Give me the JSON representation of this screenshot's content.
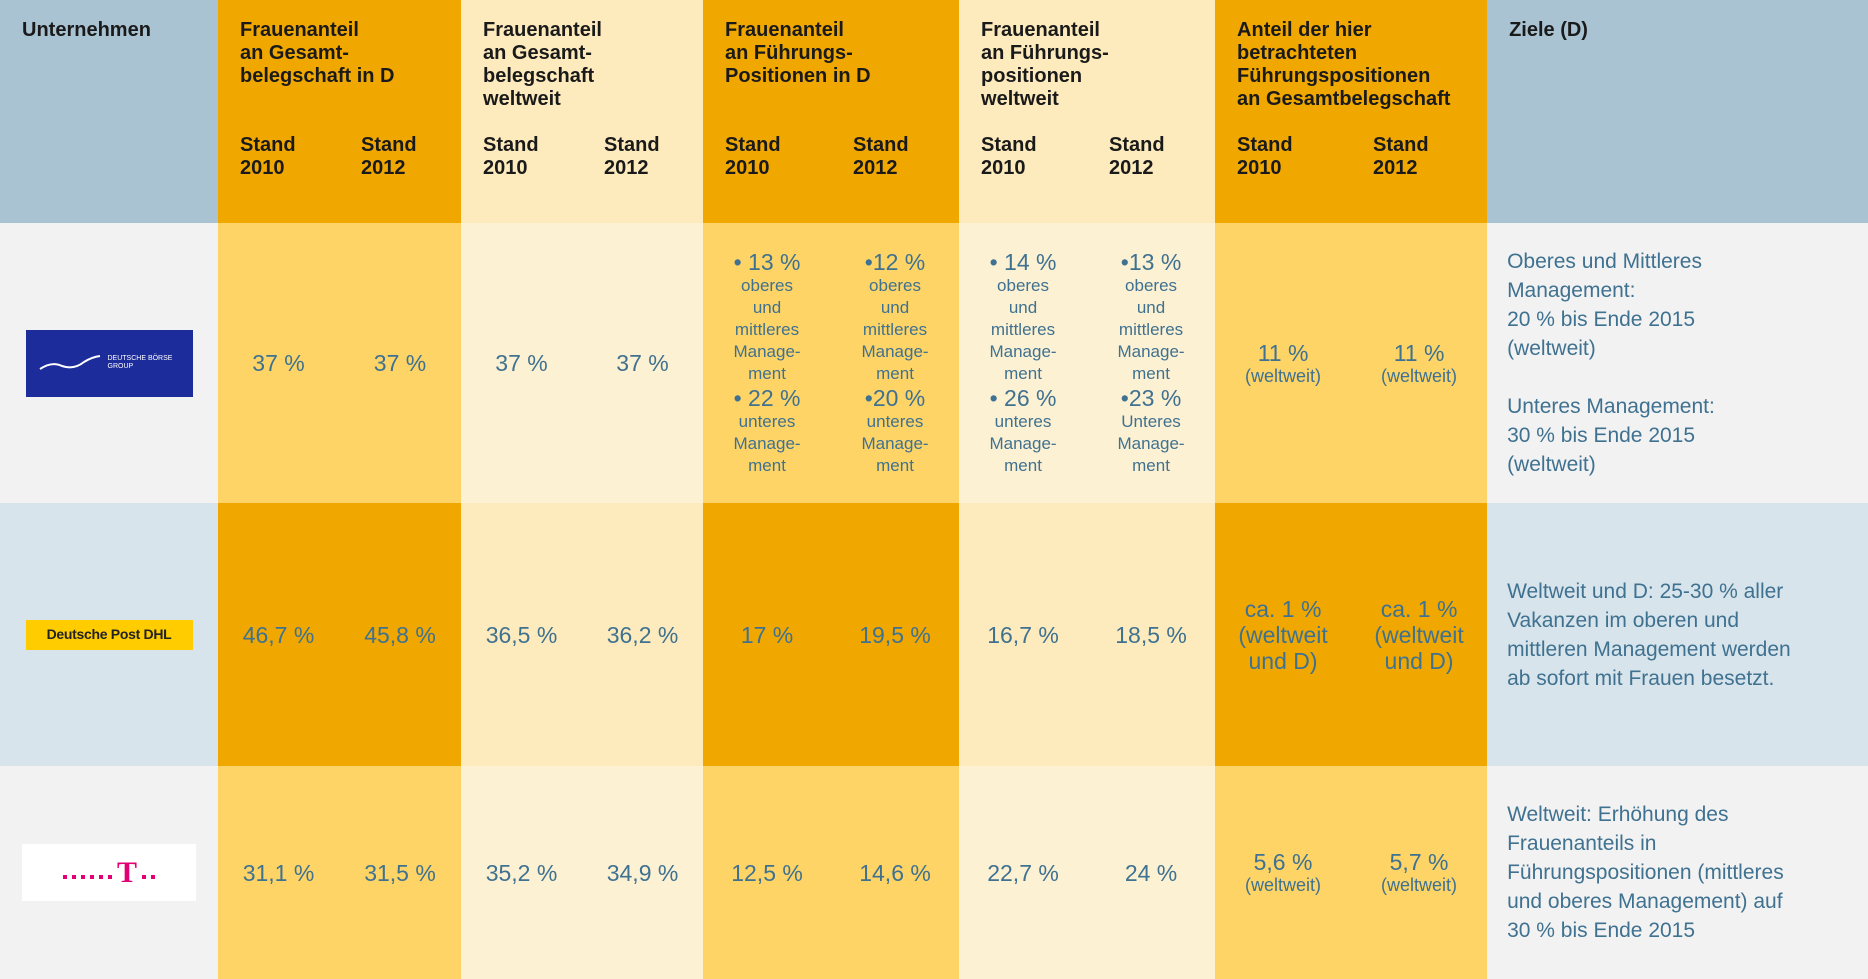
{
  "header": {
    "company": "Unternehmen",
    "goals": "Ziele (D)",
    "groups": [
      {
        "title": "Frauenanteil\nan Gesamt-\nbelegschaft in D",
        "stands": [
          "Stand\n2010",
          "Stand\n2012"
        ]
      },
      {
        "title": "Frauenanteil\nan Gesamt-\nbelegschaft\nweltweit",
        "stands": [
          "Stand\n2010",
          "Stand\n2012"
        ]
      },
      {
        "title": "Frauenanteil\nan Führungs-\nPositionen in D",
        "stands": [
          "Stand\n2010",
          "Stand\n2012"
        ]
      },
      {
        "title": "Frauenanteil\nan Führungs-\npositionen\nweltweit",
        "stands": [
          "Stand\n2010",
          "Stand\n2012"
        ]
      },
      {
        "title": "Anteil der hier\nbetrachteten\nFührungspositionen\nan Gesamtbelegschaft",
        "stands": [
          "Stand\n2010",
          "Stand\n2012"
        ]
      }
    ]
  },
  "rows": [
    {
      "logo": {
        "text": "DEUTSCHE BÖRSE\nGROUP"
      },
      "cells": [
        "37 %",
        "37 %",
        "37 %",
        "37 %",
        {
          "items": [
            {
              "value": "• 13 %",
              "note": "oberes\nund\nmittleres\nManage-\nment"
            },
            {
              "value": "• 22 %",
              "note": "unteres\nManage-\nment"
            }
          ]
        },
        {
          "items": [
            {
              "value": "•12 %",
              "note": "oberes\nund\nmittleres\nManage-\nment"
            },
            {
              "value": "•20 %",
              "note": "unteres\nManage-\nment"
            }
          ]
        },
        {
          "items": [
            {
              "value": "• 14 %",
              "note": "oberes\nund\nmittleres\nManage-\nment"
            },
            {
              "value": "• 26 %",
              "note": "unteres\nManage-\nment"
            }
          ]
        },
        {
          "items": [
            {
              "value": "•13 %",
              "note": "oberes\nund\nmittleres\nManage-\nment"
            },
            {
              "value": "•23 %",
              "note": "Unteres\nManage-\nment"
            }
          ]
        },
        {
          "value": "11 %",
          "note": "(weltweit)"
        },
        {
          "value": "11 %",
          "note": "(weltweit)"
        }
      ],
      "goals": "Oberes und Mittleres\nManagement:\n20 % bis Ende 2015\n(weltweit)\n\nUnteres Management:\n30 % bis Ende 2015\n(weltweit)"
    },
    {
      "logo": {
        "text": "Deutsche Post DHL"
      },
      "cells": [
        "46,7 %",
        "45,8 %",
        "36,5 %",
        "36,2 %",
        "17 %",
        "19,5 %",
        "16,7 %",
        "18,5 %",
        "ca. 1 %\n(weltweit\nund D)",
        "ca. 1 %\n(weltweit\nund D)"
      ],
      "goals": "Weltweit und D: 25-30 % aller\nVakanzen im oberen und\nmittleren Management werden\nab sofort mit Frauen besetzt."
    },
    {
      "logo": {
        "text": "T"
      },
      "cells": [
        "31,1 %",
        "31,5 %",
        "35,2 %",
        "34,9 %",
        "12,5 %",
        "14,6 %",
        "22,7 %",
        "24 %",
        {
          "value": "5,6 %",
          "note": "(weltweit)"
        },
        {
          "value": "5,7 %",
          "note": "(weltweit)"
        }
      ],
      "goals": "Weltweit: Erhöhung des\nFrauenanteils in\nFührungspositionen (mittleres\nund oberes Management) auf\n30 % bis Ende 2015"
    }
  ]
}
